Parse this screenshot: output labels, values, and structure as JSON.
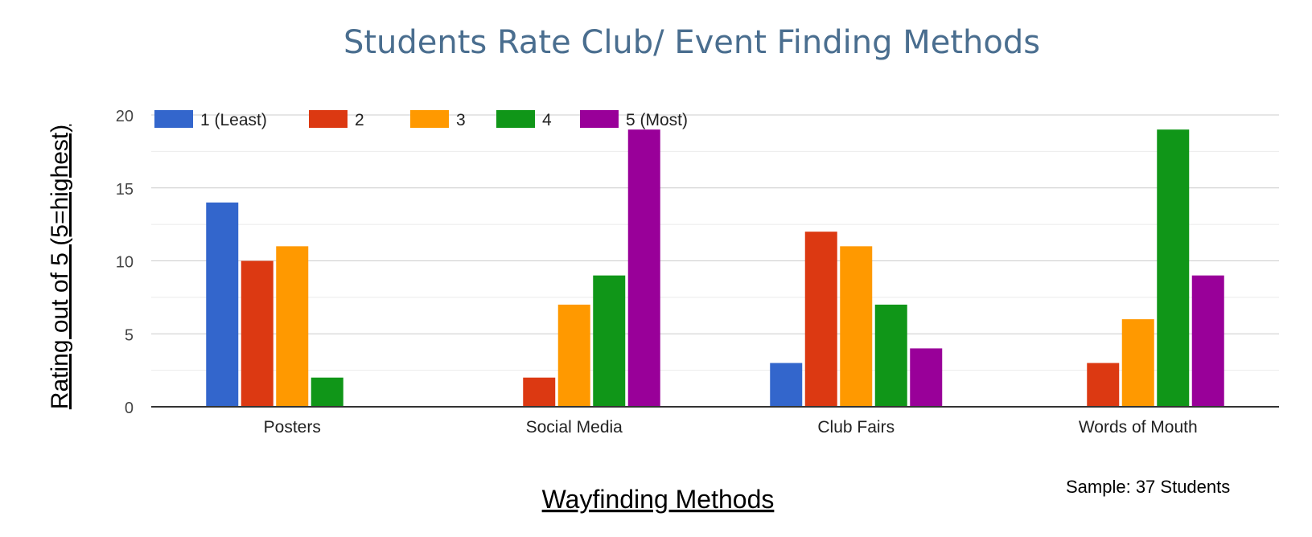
{
  "chart_data": {
    "type": "bar",
    "title": "Students Rate Club/ Event Finding Methods",
    "xlabel": "Wayfinding Methods",
    "ylabel": "Rating out of 5 (5=highest)",
    "note": "Sample: 37 Students",
    "categories": [
      "Posters",
      "Social Media",
      "Club Fairs",
      "Words of Mouth"
    ],
    "y_ticks": [
      "0",
      "5",
      "10",
      "15",
      "20"
    ],
    "ylim": [
      0,
      20
    ],
    "grid": true,
    "legend_position": "top-left",
    "series": [
      {
        "name": "1 (Least)",
        "color": "#3366cc",
        "values": [
          14,
          0,
          3,
          0
        ]
      },
      {
        "name": "2",
        "color": "#dc3912",
        "values": [
          10,
          2,
          12,
          3
        ]
      },
      {
        "name": "3",
        "color": "#ff9900",
        "values": [
          11,
          7,
          11,
          6
        ]
      },
      {
        "name": "4",
        "color": "#109618",
        "values": [
          2,
          9,
          7,
          19
        ]
      },
      {
        "name": "5 (Most)",
        "color": "#990099",
        "values": [
          0,
          19,
          4,
          9
        ]
      }
    ]
  }
}
